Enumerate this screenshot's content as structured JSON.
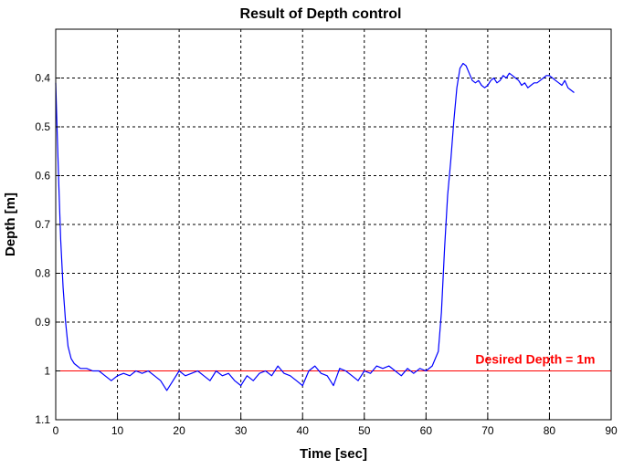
{
  "chart_data": {
    "type": "line",
    "title": "Result of Depth control",
    "xlabel": "Time [sec]",
    "ylabel": "Depth [m]",
    "xlim": [
      0,
      90
    ],
    "ylim": [
      0.3,
      1.1
    ],
    "y_reversed": true,
    "grid": true,
    "grid_style": "dashed",
    "x_ticks": [
      0,
      10,
      20,
      30,
      40,
      50,
      60,
      70,
      80,
      90
    ],
    "y_ticks": [
      0.4,
      0.5,
      0.6,
      0.7,
      0.8,
      0.9,
      1,
      1.1
    ],
    "series": [
      {
        "color": "#0000ff",
        "x": [
          0,
          0.2,
          0.5,
          0.8,
          1.2,
          1.6,
          2.0,
          2.5,
          3.0,
          3.5,
          4,
          5,
          6,
          7,
          8,
          9,
          10,
          11,
          12,
          13,
          14,
          15,
          16,
          17,
          18,
          19,
          20,
          21,
          22,
          23,
          24,
          25,
          26,
          27,
          28,
          29,
          30,
          31,
          32,
          33,
          34,
          35,
          36,
          37,
          38,
          39,
          40,
          41,
          42,
          43,
          44,
          45,
          46,
          47,
          48,
          49,
          50,
          51,
          52,
          53,
          54,
          55,
          56,
          57,
          58,
          59,
          60,
          61,
          62,
          62.5,
          63,
          63.5,
          64,
          64.5,
          65,
          65.5,
          66,
          66.5,
          67,
          67.5,
          68,
          68.5,
          69,
          69.5,
          70,
          70.5,
          71,
          71.5,
          72,
          72.5,
          73,
          73.5,
          74,
          74.5,
          75,
          75.5,
          76,
          76.5,
          77,
          77.5,
          78,
          78.5,
          79,
          79.5,
          80,
          80.5,
          81,
          81.5,
          82,
          82.5,
          83,
          83.5,
          84
        ],
        "y": [
          0.41,
          0.5,
          0.62,
          0.73,
          0.83,
          0.9,
          0.95,
          0.975,
          0.985,
          0.99,
          0.995,
          0.995,
          1.0,
          1.0,
          1.01,
          1.02,
          1.01,
          1.005,
          1.01,
          1.0,
          1.005,
          1.0,
          1.01,
          1.02,
          1.04,
          1.02,
          1.0,
          1.01,
          1.005,
          1.0,
          1.01,
          1.02,
          1.0,
          1.01,
          1.005,
          1.02,
          1.03,
          1.01,
          1.02,
          1.005,
          1.0,
          1.01,
          0.99,
          1.005,
          1.01,
          1.02,
          1.03,
          1.0,
          0.99,
          1.005,
          1.01,
          1.03,
          0.995,
          1.0,
          1.01,
          1.02,
          1.0,
          1.005,
          0.99,
          0.995,
          0.99,
          1.0,
          1.01,
          0.995,
          1.005,
          0.995,
          1.0,
          0.99,
          0.96,
          0.88,
          0.75,
          0.64,
          0.57,
          0.49,
          0.42,
          0.38,
          0.37,
          0.375,
          0.39,
          0.405,
          0.41,
          0.405,
          0.415,
          0.42,
          0.415,
          0.405,
          0.4,
          0.41,
          0.405,
          0.395,
          0.4,
          0.39,
          0.395,
          0.4,
          0.405,
          0.415,
          0.41,
          0.42,
          0.415,
          0.41,
          0.41,
          0.405,
          0.4,
          0.395,
          0.395,
          0.4,
          0.405,
          0.41,
          0.415,
          0.405,
          0.42,
          0.425,
          0.43
        ]
      }
    ],
    "reference_line": {
      "y": 1,
      "color": "#ff0000",
      "label": "Desired Depth = 1m",
      "label_x": 68
    }
  }
}
